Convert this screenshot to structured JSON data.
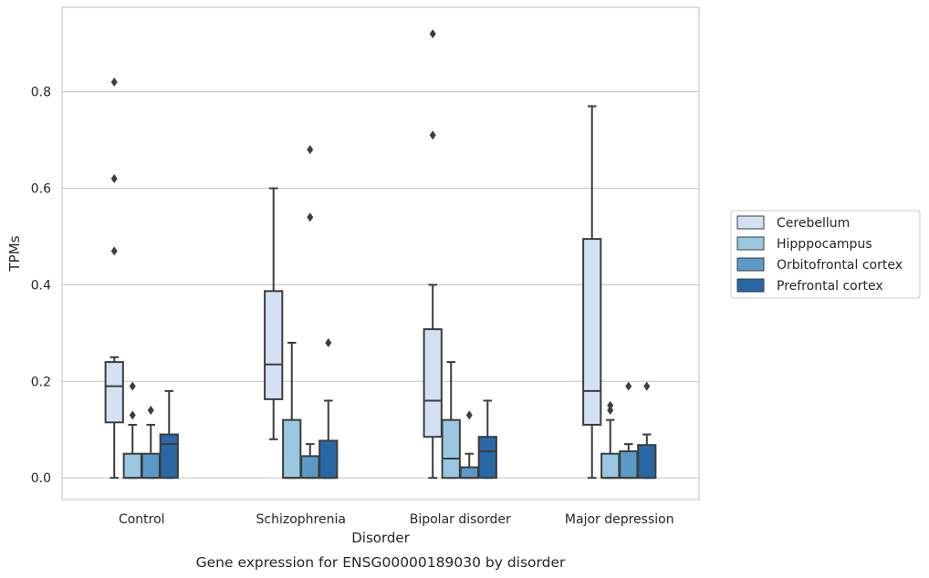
{
  "caption": "Gene expression for ENSG00000189030 by disorder",
  "chart_data": {
    "type": "box",
    "xlabel": "Disorder",
    "ylabel": "TPMs",
    "ylim": [
      -0.045,
      0.975
    ],
    "yticks": [
      0.0,
      0.2,
      0.4,
      0.6,
      0.8
    ],
    "ytick_labels": [
      "0.0",
      "0.2",
      "0.4",
      "0.6",
      "0.8"
    ],
    "grid": "horizontal",
    "legend_position": "right",
    "categories": [
      "Control",
      "Schizophrenia",
      "Bipolar disorder",
      "Major depression"
    ],
    "series": [
      {
        "name": "Cerebellum",
        "color": "#d2e2f2",
        "boxes": [
          {
            "whislo": 0.0,
            "q1": 0.115,
            "med": 0.19,
            "q3": 0.24,
            "whishi": 0.25,
            "fliers": [
              0.47,
              0.62,
              0.82
            ]
          },
          {
            "whislo": 0.08,
            "q1": 0.163,
            "med": 0.235,
            "q3": 0.387,
            "whishi": 0.6,
            "fliers": []
          },
          {
            "whislo": 0.0,
            "q1": 0.085,
            "med": 0.16,
            "q3": 0.308,
            "whishi": 0.4,
            "fliers": [
              0.71,
              0.92
            ]
          },
          {
            "whislo": 0.0,
            "q1": 0.11,
            "med": 0.18,
            "q3": 0.495,
            "whishi": 0.77,
            "fliers": []
          }
        ]
      },
      {
        "name": "Hipppocampus",
        "color": "#9ac8e0",
        "boxes": [
          {
            "whislo": 0.0,
            "q1": 0.0,
            "med": 0.0,
            "q3": 0.05,
            "whishi": 0.11,
            "fliers": [
              0.13,
              0.19
            ]
          },
          {
            "whislo": 0.0,
            "q1": 0.0,
            "med": 0.0,
            "q3": 0.12,
            "whishi": 0.28,
            "fliers": []
          },
          {
            "whislo": 0.0,
            "q1": 0.0,
            "med": 0.04,
            "q3": 0.12,
            "whishi": 0.24,
            "fliers": []
          },
          {
            "whislo": 0.0,
            "q1": 0.0,
            "med": 0.0,
            "q3": 0.05,
            "whishi": 0.12,
            "fliers": [
              0.14,
              0.15
            ]
          }
        ]
      },
      {
        "name": "Orbitofrontal cortex",
        "color": "#5b9ac8",
        "boxes": [
          {
            "whislo": 0.0,
            "q1": 0.0,
            "med": 0.0,
            "q3": 0.05,
            "whishi": 0.11,
            "fliers": [
              0.14
            ]
          },
          {
            "whislo": 0.0,
            "q1": 0.0,
            "med": 0.0,
            "q3": 0.045,
            "whishi": 0.07,
            "fliers": [
              0.54,
              0.68
            ]
          },
          {
            "whislo": 0.0,
            "q1": 0.0,
            "med": 0.0,
            "q3": 0.022,
            "whishi": 0.05,
            "fliers": [
              0.13
            ]
          },
          {
            "whislo": 0.0,
            "q1": 0.0,
            "med": 0.0,
            "q3": 0.055,
            "whishi": 0.07,
            "fliers": [
              0.19
            ]
          }
        ]
      },
      {
        "name": "Prefrontal cortex",
        "color": "#2868a6",
        "boxes": [
          {
            "whislo": 0.0,
            "q1": 0.0,
            "med": 0.07,
            "q3": 0.09,
            "whishi": 0.18,
            "fliers": []
          },
          {
            "whislo": 0.0,
            "q1": 0.0,
            "med": 0.0,
            "q3": 0.077,
            "whishi": 0.16,
            "fliers": [
              0.28
            ]
          },
          {
            "whislo": 0.0,
            "q1": 0.0,
            "med": 0.055,
            "q3": 0.085,
            "whishi": 0.16,
            "fliers": []
          },
          {
            "whislo": 0.0,
            "q1": 0.0,
            "med": 0.0,
            "q3": 0.068,
            "whishi": 0.09,
            "fliers": [
              0.19
            ]
          }
        ]
      }
    ]
  }
}
